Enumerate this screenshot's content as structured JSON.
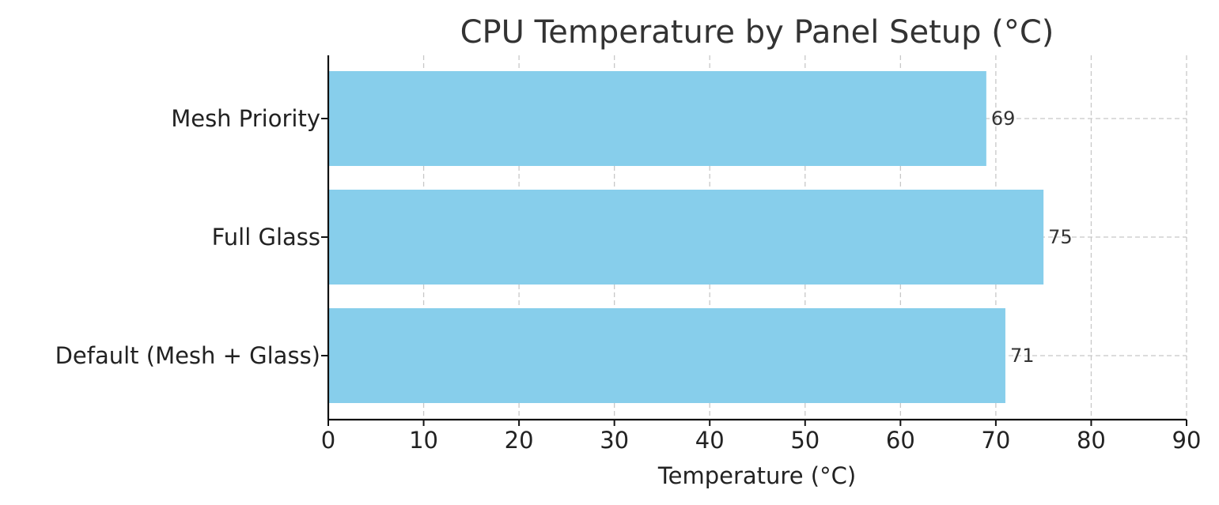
{
  "chart_data": {
    "type": "bar",
    "orientation": "horizontal",
    "title": "CPU Temperature by Panel Setup (°C)",
    "xlabel": "Temperature (°C)",
    "ylabel": "",
    "categories": [
      "Default (Mesh + Glass)",
      "Full Glass",
      "Mesh Priority"
    ],
    "values": [
      71,
      75,
      69
    ],
    "data_labels": [
      "71",
      "75",
      "69"
    ],
    "xlim": [
      0,
      90
    ],
    "xticks": [
      0,
      10,
      20,
      30,
      40,
      50,
      60,
      70,
      80,
      90
    ],
    "grid": true,
    "bar_color": "#87CEEB"
  }
}
